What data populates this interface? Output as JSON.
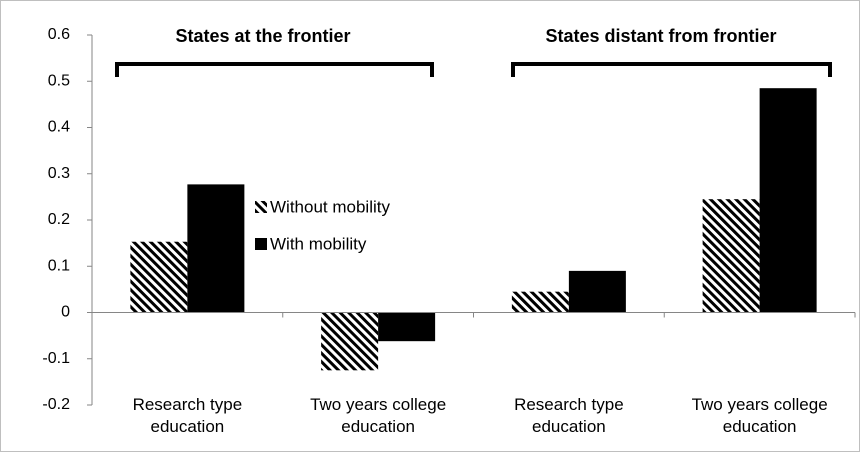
{
  "chart_data": {
    "type": "bar",
    "annotations": [
      "States at the frontier",
      "States distant from frontier"
    ],
    "categories": [
      "Research type education",
      "Two years college education",
      "Research type education",
      "Two years college education"
    ],
    "series": [
      {
        "name": "Without mobility",
        "color": "#000000",
        "hatch": true,
        "values": [
          0.153,
          -0.125,
          0.045,
          0.245
        ]
      },
      {
        "name": "With mobility",
        "color": "#000000",
        "hatch": false,
        "values": [
          0.277,
          -0.062,
          0.09,
          0.485
        ]
      }
    ],
    "ylim": [
      -0.2,
      0.6
    ],
    "yticks": [
      -0.2,
      -0.1,
      0,
      0.1,
      0.2,
      0.3,
      0.4,
      0.5,
      0.6
    ],
    "grid": false,
    "legend": "center"
  }
}
